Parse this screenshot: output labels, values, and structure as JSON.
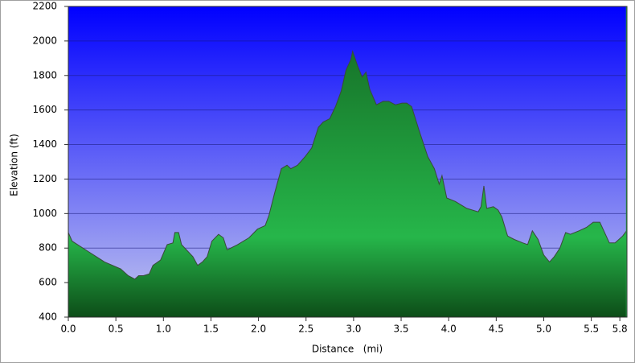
{
  "chart_data": {
    "type": "area",
    "x_label": "Distance   (mi)",
    "y_label": "Elevation (ft)",
    "x": [
      0,
      0.04,
      0.21,
      0.38,
      0.55,
      0.63,
      0.7,
      0.74,
      0.79,
      0.85,
      0.89,
      0.97,
      1.04,
      1.1,
      1.12,
      1.16,
      1.19,
      1.31,
      1.36,
      1.41,
      1.46,
      1.51,
      1.58,
      1.63,
      1.67,
      1.78,
      1.9,
      1.99,
      2.07,
      2.11,
      2.17,
      2.24,
      2.3,
      2.34,
      2.41,
      2.49,
      2.56,
      2.63,
      2.68,
      2.75,
      2.81,
      2.87,
      2.92,
      2.97,
      2.99,
      3.04,
      3.09,
      3.13,
      3.17,
      3.24,
      3.31,
      3.37,
      3.44,
      3.51,
      3.56,
      3.61,
      3.69,
      3.78,
      3.85,
      3.9,
      3.93,
      3.98,
      4.07,
      4.19,
      4.31,
      4.34,
      4.37,
      4.4,
      4.47,
      4.52,
      4.56,
      4.62,
      4.69,
      4.78,
      4.83,
      4.88,
      4.94,
      5.0,
      5.06,
      5.11,
      5.17,
      5.23,
      5.28,
      5.37,
      5.45,
      5.52,
      5.59,
      5.64,
      5.69,
      5.75,
      5.83,
      5.87
    ],
    "values": [
      890,
      840,
      780,
      720,
      680,
      640,
      620,
      640,
      640,
      650,
      700,
      730,
      820,
      830,
      890,
      890,
      820,
      750,
      700,
      720,
      750,
      840,
      880,
      860,
      790,
      820,
      860,
      910,
      930,
      990,
      1120,
      1260,
      1280,
      1260,
      1280,
      1330,
      1380,
      1500,
      1530,
      1550,
      1620,
      1710,
      1830,
      1890,
      1940,
      1860,
      1790,
      1820,
      1720,
      1630,
      1650,
      1650,
      1630,
      1640,
      1640,
      1620,
      1480,
      1330,
      1260,
      1170,
      1220,
      1090,
      1070,
      1030,
      1010,
      1040,
      1160,
      1030,
      1040,
      1020,
      980,
      870,
      850,
      830,
      820,
      900,
      850,
      760,
      720,
      750,
      800,
      890,
      880,
      900,
      920,
      950,
      950,
      890,
      830,
      830,
      870,
      900
    ],
    "color": "#22b04a",
    "xlim": [
      0,
      5.875
    ],
    "ylim": [
      400,
      2200
    ],
    "xticks": [
      {
        "value": 0,
        "label": "0.0"
      },
      0.5,
      {
        "value": 1,
        "label": "1.0"
      },
      1.5,
      {
        "value": 2,
        "label": "2.0"
      },
      2.5,
      {
        "value": 3,
        "label": "3.0"
      },
      3.5,
      {
        "value": 4,
        "label": "4.0"
      },
      4.5,
      {
        "value": 5,
        "label": "5.0"
      },
      5.5,
      5.8
    ],
    "yticks": [
      400,
      600,
      800,
      1000,
      1200,
      1400,
      1600,
      1800,
      2000,
      2200
    ],
    "grid": true
  }
}
